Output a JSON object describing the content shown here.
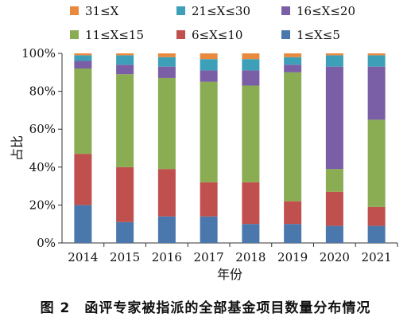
{
  "chart_data": {
    "type": "bar",
    "stacked": true,
    "categories": [
      "2014",
      "2015",
      "2016",
      "2017",
      "2018",
      "2019",
      "2020",
      "2021"
    ],
    "series": [
      {
        "name": "1≤X≤5",
        "color": "#4a78ad",
        "values": [
          20,
          11,
          14,
          14,
          10,
          10,
          9,
          9
        ]
      },
      {
        "name": "6≤X≤10",
        "color": "#c0504d",
        "values": [
          27,
          29,
          25,
          18,
          22,
          12,
          18,
          10
        ]
      },
      {
        "name": "11≤X≤15",
        "color": "#8aac52",
        "values": [
          45,
          49,
          48,
          53,
          51,
          68,
          12,
          46
        ]
      },
      {
        "name": "16≤X≤20",
        "color": "#7a5ea6",
        "values": [
          4,
          5,
          6,
          6,
          8,
          4,
          54,
          28
        ]
      },
      {
        "name": "21≤X≤30",
        "color": "#3ea0b8",
        "values": [
          3,
          5,
          5,
          6,
          6,
          4,
          6,
          6
        ]
      },
      {
        "name": "31≤X",
        "color": "#e8893d",
        "values": [
          1,
          1,
          2,
          3,
          3,
          2,
          1,
          1
        ]
      }
    ],
    "legend_order": [
      "31≤X",
      "21≤X≤30",
      "16≤X≤20",
      "11≤X≤15",
      "6≤X≤10",
      "1≤X≤5"
    ],
    "legend_placement": "top",
    "xlabel": "年份",
    "ylabel": "占比",
    "ylim": [
      0,
      100
    ],
    "yticks": [
      "0%",
      "20%",
      "40%",
      "60%",
      "80%",
      "100%"
    ],
    "grid": false
  },
  "caption": {
    "figure_number": "图 2",
    "text": "函评专家被指派的全部基金项目数量分布情况"
  }
}
